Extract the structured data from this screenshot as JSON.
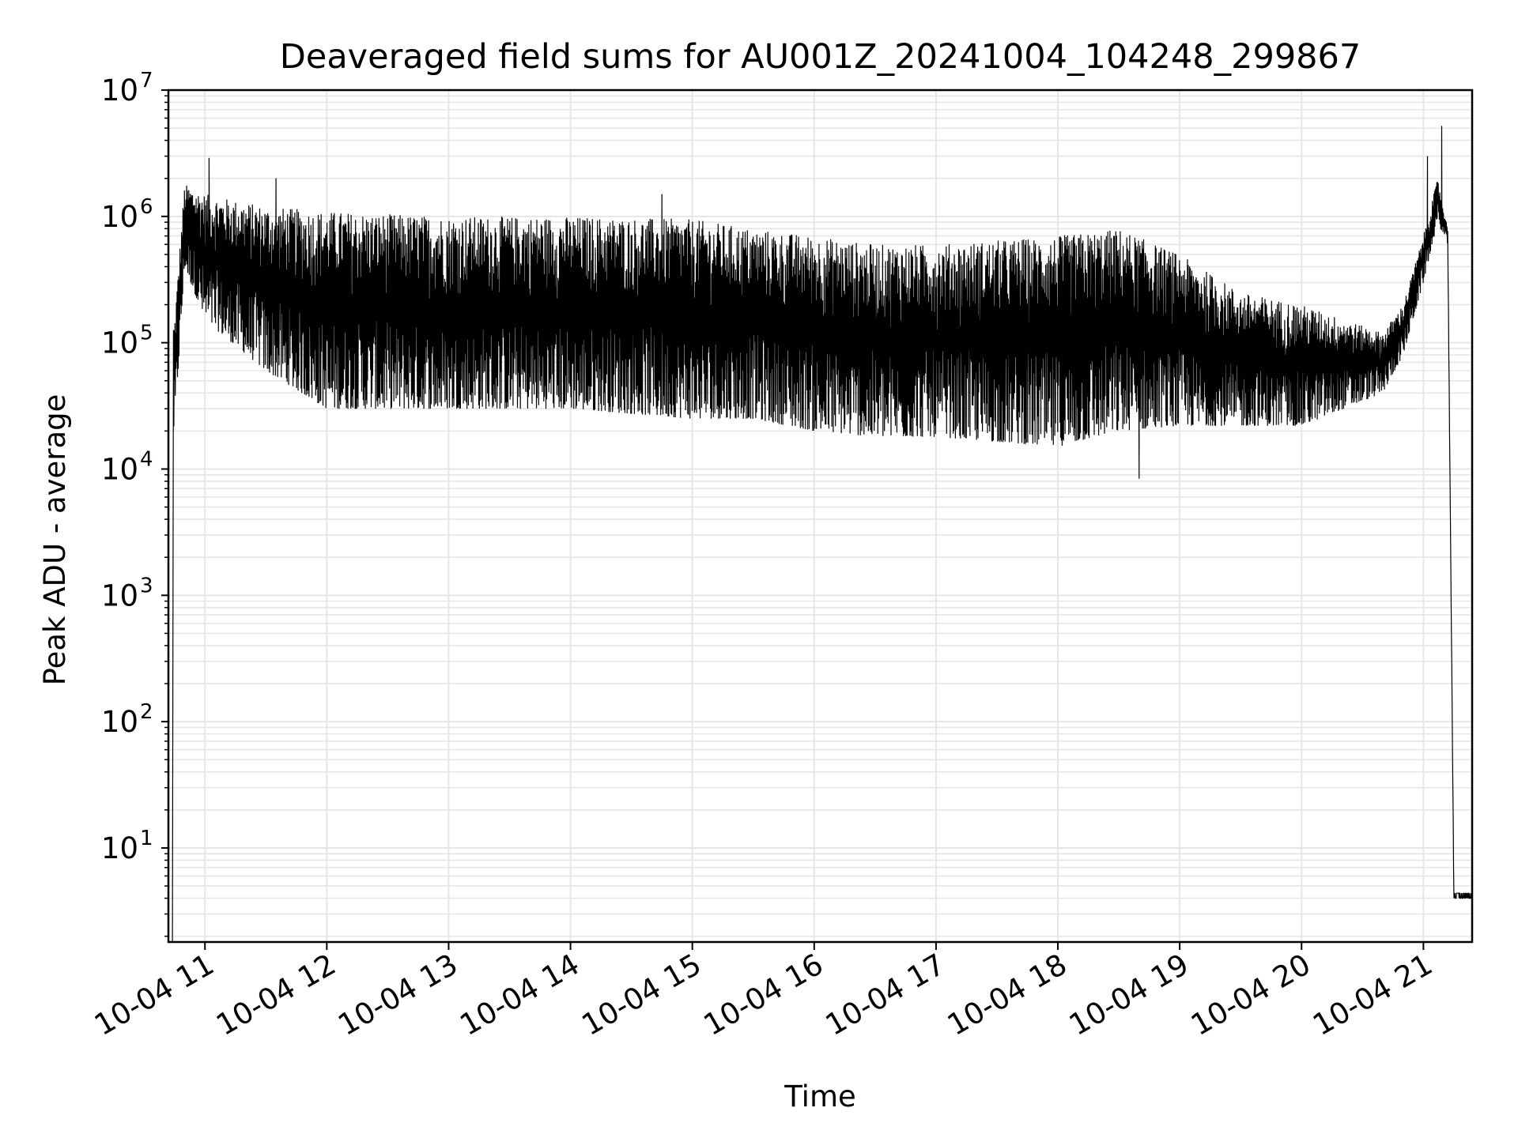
{
  "chart_data": {
    "type": "line",
    "title": "Deaveraged field sums for AU001Z_20241004_104248_299867",
    "xlabel": "Time",
    "ylabel": "Peak ADU - average",
    "yscale": "log",
    "ylim": [
      1.8,
      10000000
    ],
    "xlim": [
      "2024-10-04 10:42",
      "2024-10-04 21:24"
    ],
    "grid": true,
    "grid_minor": true,
    "line_color": "#000000",
    "grid_color": "#e6e6e6",
    "x_tick_labels": [
      "10-04 11",
      "10-04 12",
      "10-04 13",
      "10-04 14",
      "10-04 15",
      "10-04 16",
      "10-04 17",
      "10-04 18",
      "10-04 19",
      "10-04 20",
      "10-04 21"
    ],
    "y_tick_labels": [
      {
        "base": "10",
        "exp": "1"
      },
      {
        "base": "10",
        "exp": "2"
      },
      {
        "base": "10",
        "exp": "3"
      },
      {
        "base": "10",
        "exp": "4"
      },
      {
        "base": "10",
        "exp": "5"
      },
      {
        "base": "10",
        "exp": "6"
      },
      {
        "base": "10",
        "exp": "7"
      }
    ],
    "envelope": {
      "description_units": "time as YYYY-MM-DD HH:MM, values in ADU",
      "points": [
        {
          "t": "2024-10-04 10:45",
          "upper": 150000,
          "lower": 20000
        },
        {
          "t": "2024-10-04 10:50",
          "upper": 1800000,
          "lower": 400000
        },
        {
          "t": "2024-10-04 11:00",
          "upper": 1500000,
          "lower": 150000
        },
        {
          "t": "2024-10-04 11:30",
          "upper": 1200000,
          "lower": 60000
        },
        {
          "t": "2024-10-04 12:00",
          "upper": 1100000,
          "lower": 30000
        },
        {
          "t": "2024-10-04 13:00",
          "upper": 1000000,
          "lower": 30000
        },
        {
          "t": "2024-10-04 14:00",
          "upper": 1000000,
          "lower": 30000
        },
        {
          "t": "2024-10-04 15:00",
          "upper": 950000,
          "lower": 25000
        },
        {
          "t": "2024-10-04 15:30",
          "upper": 800000,
          "lower": 25000
        },
        {
          "t": "2024-10-04 16:00",
          "upper": 700000,
          "lower": 20000
        },
        {
          "t": "2024-10-04 16:30",
          "upper": 600000,
          "lower": 18000
        },
        {
          "t": "2024-10-04 17:00",
          "upper": 600000,
          "lower": 18000
        },
        {
          "t": "2024-10-04 18:00",
          "upper": 700000,
          "lower": 15000
        },
        {
          "t": "2024-10-04 18:30",
          "upper": 800000,
          "lower": 20000
        },
        {
          "t": "2024-10-04 19:00",
          "upper": 500000,
          "lower": 22000
        },
        {
          "t": "2024-10-04 19:30",
          "upper": 250000,
          "lower": 22000
        },
        {
          "t": "2024-10-04 20:00",
          "upper": 200000,
          "lower": 22000
        },
        {
          "t": "2024-10-04 20:40",
          "upper": 120000,
          "lower": 40000
        },
        {
          "t": "2024-10-04 20:50",
          "upper": 200000,
          "lower": 80000
        },
        {
          "t": "2024-10-04 21:00",
          "upper": 700000,
          "lower": 300000
        },
        {
          "t": "2024-10-04 21:07",
          "upper": 2000000,
          "lower": 900000
        },
        {
          "t": "2024-10-04 21:12",
          "upper": 800000,
          "lower": 600000
        },
        {
          "t": "2024-10-04 21:15",
          "upper": 4,
          "lower": 4
        },
        {
          "t": "2024-10-04 21:24",
          "upper": 4,
          "lower": 4
        }
      ]
    },
    "spikes": [
      {
        "t": "2024-10-04 10:44",
        "value": 1.8
      },
      {
        "t": "2024-10-04 11:02",
        "value": 2900000
      },
      {
        "t": "2024-10-04 11:35",
        "value": 2000000
      },
      {
        "t": "2024-10-04 14:45",
        "value": 1500000
      },
      {
        "t": "2024-10-04 18:40",
        "value": 8500
      },
      {
        "t": "2024-10-04 21:02",
        "value": 3000000
      },
      {
        "t": "2024-10-04 21:09",
        "value": 5200000
      }
    ]
  }
}
